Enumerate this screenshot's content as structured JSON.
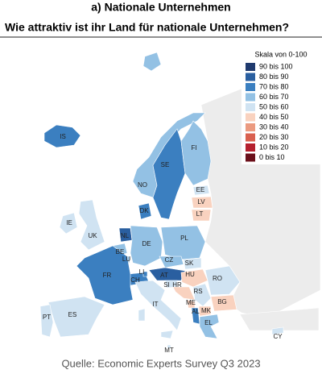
{
  "header": {
    "title": "a) Nationale Unternehmen",
    "subtitle": "Wie attraktiv ist ihr Land für nationale Unternehmen?"
  },
  "legend": {
    "title": "Skala von 0-100",
    "items": [
      {
        "label": "90 bis 100",
        "color": "#1f3a6e"
      },
      {
        "label": "80 bis 90",
        "color": "#2a5fa0"
      },
      {
        "label": "70 bis 80",
        "color": "#3b7fc0"
      },
      {
        "label": "60 bis 70",
        "color": "#93c1e4"
      },
      {
        "label": "50 bis 60",
        "color": "#d0e3f2"
      },
      {
        "label": "40 bis 50",
        "color": "#f9d2bf"
      },
      {
        "label": "30 bis 40",
        "color": "#eb9a80"
      },
      {
        "label": "20 bis 30",
        "color": "#d9604f"
      },
      {
        "label": "10 bis 20",
        "color": "#b5202e"
      },
      {
        "label": "0 bis 10",
        "color": "#6b0f1a"
      }
    ]
  },
  "countries": [
    {
      "label": "IS",
      "class": 2
    },
    {
      "label": "NO",
      "class": 3
    },
    {
      "label": "SE",
      "class": 2
    },
    {
      "label": "FI",
      "class": 3
    },
    {
      "label": "EE",
      "class": 4
    },
    {
      "label": "LV",
      "class": 5
    },
    {
      "label": "LT",
      "class": 5
    },
    {
      "label": "DK",
      "class": 2
    },
    {
      "label": "IE",
      "class": 4
    },
    {
      "label": "UK",
      "class": 4
    },
    {
      "label": "NL",
      "class": 1
    },
    {
      "label": "BE",
      "class": 3
    },
    {
      "label": "LU",
      "class": 3
    },
    {
      "label": "DE",
      "class": 3
    },
    {
      "label": "PL",
      "class": 3
    },
    {
      "label": "CZ",
      "class": 3
    },
    {
      "label": "SK",
      "class": 4
    },
    {
      "label": "AT",
      "class": 1
    },
    {
      "label": "CH",
      "class": 2
    },
    {
      "label": "LI",
      "class": 2
    },
    {
      "label": "FR",
      "class": 2
    },
    {
      "label": "HU",
      "class": 5
    },
    {
      "label": "SI",
      "class": 4
    },
    {
      "label": "HR",
      "class": 5
    },
    {
      "label": "RS",
      "class": 4
    },
    {
      "label": "RO",
      "class": 4
    },
    {
      "label": "BG",
      "class": 5
    },
    {
      "label": "ME",
      "class": 5
    },
    {
      "label": "AL",
      "class": 2
    },
    {
      "label": "MK",
      "class": 5
    },
    {
      "label": "EL",
      "class": 3
    },
    {
      "label": "IT",
      "class": 4
    },
    {
      "label": "ES",
      "class": 4
    },
    {
      "label": "PT",
      "class": 4
    },
    {
      "label": "MT",
      "class": 4
    },
    {
      "label": "CY",
      "class": 4
    }
  ],
  "source": "Quelle: Economic Experts Survey Q3 2023"
}
